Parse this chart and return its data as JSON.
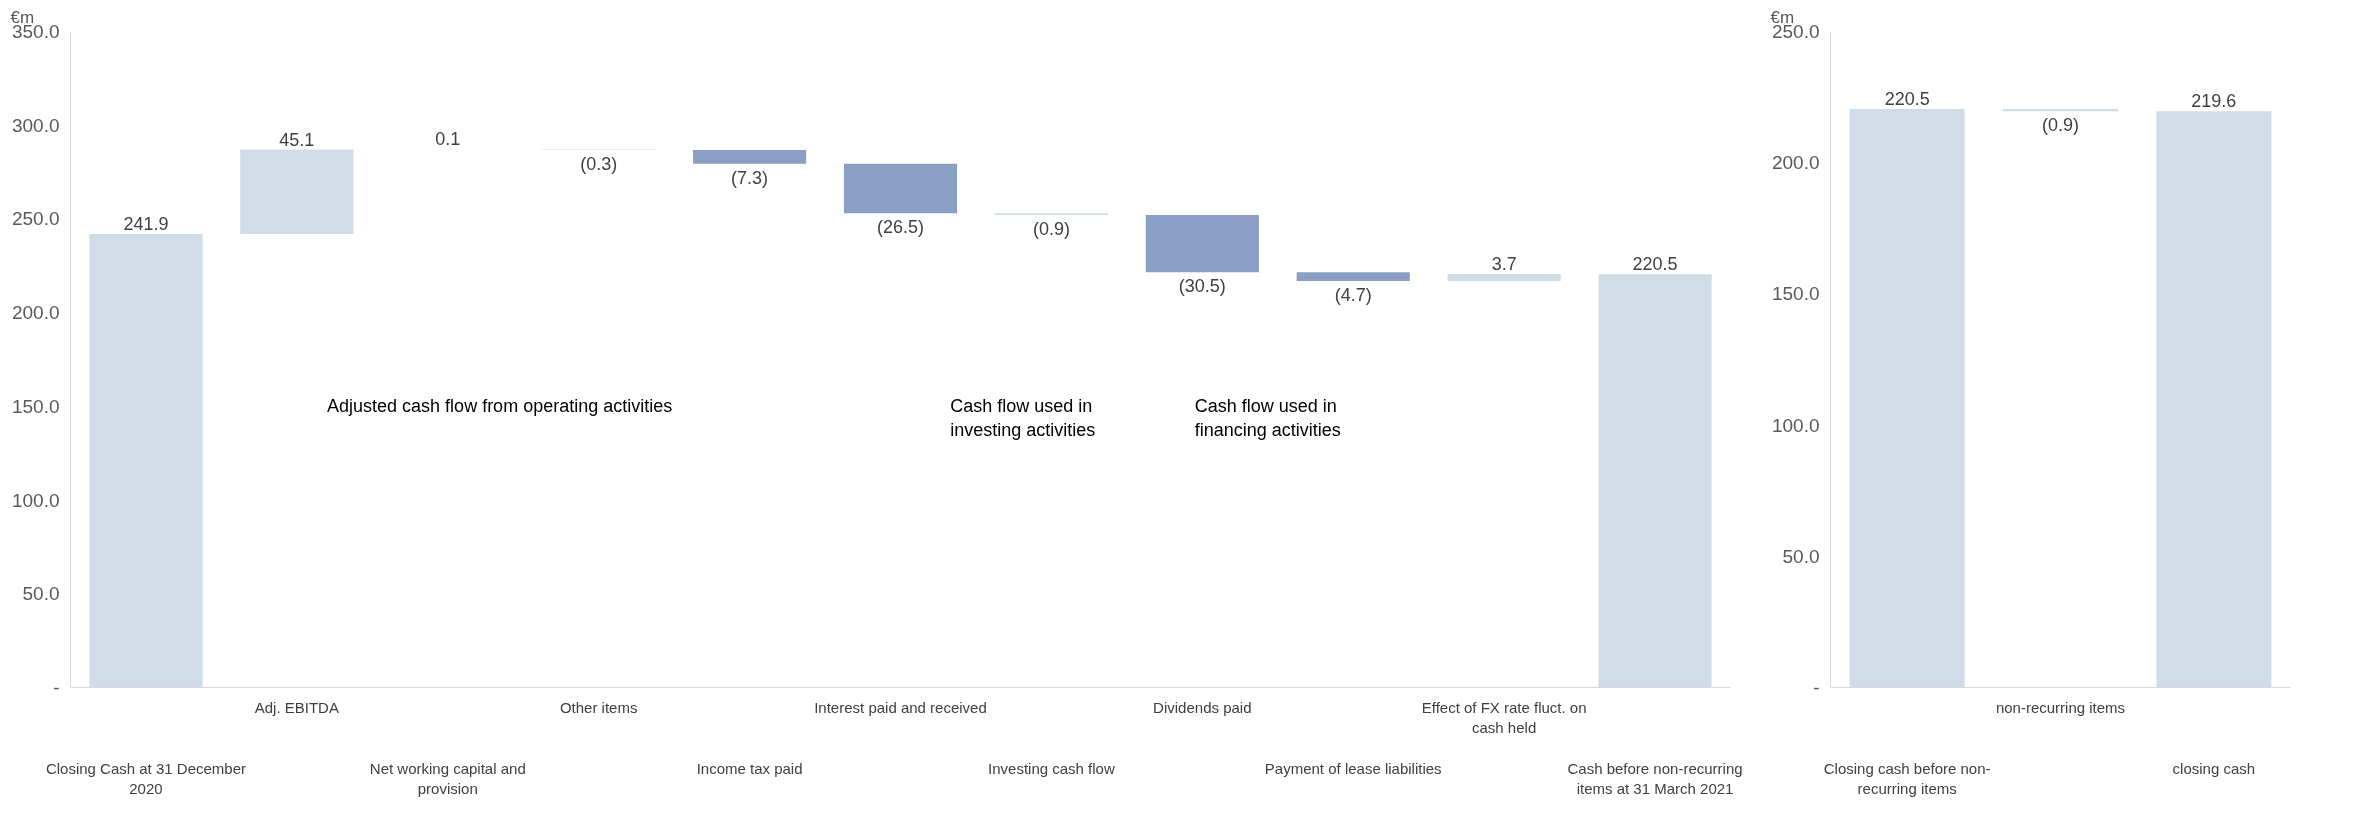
{
  "chart_data": [
    {
      "type": "bar",
      "ylabel": "€m",
      "categories": [
        "Closing Cash at 31 December 2020",
        "Adj. EBITDA",
        "Net working capital and provision",
        "Other items",
        "Income tax paid",
        "Interest paid and received",
        "Investing cash flow",
        "Dividends paid",
        "Payment of lease liabilities",
        "Effect of FX rate fluct. on cash held",
        "Cash before non-recurring items at 31 March 2021"
      ],
      "values": [
        241.9,
        45.1,
        0.1,
        -0.3,
        -7.3,
        -26.5,
        -0.9,
        -30.5,
        -4.7,
        3.7,
        220.5
      ],
      "base": [
        0,
        241.9,
        287.0,
        287.1,
        286.8,
        279.5,
        253.0,
        252.1,
        221.6,
        216.9,
        0
      ],
      "colors": [
        "#d0dce8",
        "#d0dce8",
        "#d0dce8",
        "#d0dce8",
        "#8a9fc4",
        "#8a9fc4",
        "#d0dce8",
        "#8a9fc4",
        "#8a9fc4",
        "#d0dce8",
        "#d0dce8"
      ],
      "value_labels": [
        "241.9",
        "45.1",
        "0.1",
        "(0.3)",
        "(7.3)",
        "(26.5)",
        "(0.9)",
        "(30.5)",
        "(4.7)",
        "3.7",
        "220.5"
      ],
      "ylim": [
        0,
        350
      ],
      "yticks": [
        {
          "value": 0,
          "label": "-"
        },
        {
          "value": 50,
          "label": "50.0"
        },
        {
          "value": 100,
          "label": "100.0"
        },
        {
          "value": 150,
          "label": "150.0"
        },
        {
          "value": 200,
          "label": "200.0"
        },
        {
          "value": 250,
          "label": "250.0"
        },
        {
          "value": 300,
          "label": "300.0"
        },
        {
          "value": 350,
          "label": "350.0"
        }
      ],
      "annotations": [
        "Adjusted cash flow from operating activities",
        "Cash flow used in investing activities",
        "Cash flow used in financing activities"
      ],
      "grid": false
    },
    {
      "type": "bar",
      "ylabel": "€m",
      "categories": [
        "Closing cash before non-recurring items",
        "non-recurring items",
        "closing cash"
      ],
      "values": [
        220.5,
        -0.9,
        219.6
      ],
      "base": [
        0,
        220.5,
        0
      ],
      "colors": [
        "#d0dce8",
        "#d0dce8",
        "#d0dce8"
      ],
      "value_labels": [
        "220.5",
        "(0.9)",
        "219.6"
      ],
      "ylim": [
        0,
        250
      ],
      "yticks": [
        {
          "value": 0,
          "label": "-"
        },
        {
          "value": 50,
          "label": "50.0"
        },
        {
          "value": 100,
          "label": "100.0"
        },
        {
          "value": 150,
          "label": "150.0"
        },
        {
          "value": 200,
          "label": "200.0"
        },
        {
          "value": 250,
          "label": "250.0"
        }
      ],
      "grid": false
    }
  ]
}
